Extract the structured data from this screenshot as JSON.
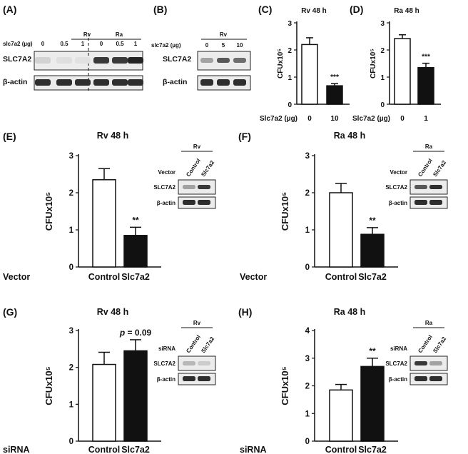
{
  "panels": {
    "A": {
      "label": "(A)",
      "groups": [
        "Rv",
        "Ra"
      ],
      "dose_label": "slc7a2 (µg)",
      "doses": [
        "0",
        "0.5",
        "1",
        "0",
        "0.5",
        "1"
      ],
      "rows": [
        "SLC7A2",
        "β-actin"
      ],
      "slc_intensity": [
        0.12,
        0.06,
        0.05,
        0.85,
        0.85,
        0.95
      ]
    },
    "B": {
      "label": "(B)",
      "group": "Rv",
      "dose_label": "slc7a2 (µg)",
      "doses": [
        "0",
        "5",
        "10"
      ],
      "rows": [
        "SLC7A2",
        "β-actin"
      ],
      "slc_intensity": [
        0.35,
        0.7,
        0.6
      ]
    },
    "E_blot": {
      "group": "Rv",
      "row_label": "Vector",
      "cols": [
        "Control",
        "Slc7a2"
      ],
      "rows": [
        "SLC7A2",
        "β-actin"
      ],
      "slc_intensity": [
        0.35,
        0.85
      ]
    },
    "F_blot": {
      "group": "Ra",
      "row_label": "Vector",
      "cols": [
        "Control",
        "Slc7a2"
      ],
      "rows": [
        "SLC7A2",
        "β-actin"
      ],
      "slc_intensity": [
        0.7,
        0.9
      ]
    },
    "G_blot": {
      "group": "Rv",
      "row_label": "siRNA",
      "cols": [
        "Control",
        "Slc7a2"
      ],
      "rows": [
        "SLC7A2",
        "β-actin"
      ],
      "slc_intensity": [
        0.25,
        0.15
      ]
    },
    "H_blot": {
      "group": "Ra",
      "row_label": "siRNA",
      "cols": [
        "Control",
        "Slc7a2"
      ],
      "rows": [
        "SLC7A2",
        "β-actin"
      ],
      "slc_intensity": [
        0.85,
        0.35
      ]
    }
  },
  "chart_data": [
    {
      "panel": "(C)",
      "type": "bar",
      "title": "Rv 48 h",
      "ylabel": "CFUx10⁵",
      "xlabel": "Slc7a2 (µg)",
      "categories": [
        "0",
        "10"
      ],
      "values": [
        2.2,
        0.68
      ],
      "errors": [
        0.25,
        0.08
      ],
      "fills": [
        "#ffffff",
        "#111111"
      ],
      "ylim": [
        0,
        3
      ],
      "yticks": [
        0,
        1,
        2,
        3
      ],
      "annotations": [
        "",
        "***"
      ]
    },
    {
      "panel": "(D)",
      "type": "bar",
      "title": "Ra 48 h",
      "ylabel": "CFUx10⁵",
      "xlabel": "Slc7a2 (µg)",
      "categories": [
        "0",
        "1"
      ],
      "values": [
        2.42,
        1.35
      ],
      "errors": [
        0.14,
        0.16
      ],
      "fills": [
        "#ffffff",
        "#111111"
      ],
      "ylim": [
        0,
        3
      ],
      "yticks": [
        0,
        1,
        2,
        3
      ],
      "annotations": [
        "",
        "***"
      ]
    },
    {
      "panel": "(E)",
      "type": "bar",
      "title": "Rv 48 h",
      "ylabel": "CFUx10⁵",
      "xlabel": "Vector",
      "categories": [
        "Control",
        "Slc7a2"
      ],
      "values": [
        2.35,
        0.85
      ],
      "errors": [
        0.3,
        0.22
      ],
      "fills": [
        "#ffffff",
        "#111111"
      ],
      "ylim": [
        0,
        3
      ],
      "yticks": [
        0,
        1,
        2,
        3
      ],
      "annotations": [
        "",
        "**"
      ]
    },
    {
      "panel": "(F)",
      "type": "bar",
      "title": "Ra 48 h",
      "ylabel": "CFUx10⁵",
      "xlabel": "Vector",
      "categories": [
        "Control",
        "Slc7a2"
      ],
      "values": [
        2.0,
        0.88
      ],
      "errors": [
        0.25,
        0.18
      ],
      "fills": [
        "#ffffff",
        "#111111"
      ],
      "ylim": [
        0,
        3
      ],
      "yticks": [
        0,
        1,
        2,
        3
      ],
      "annotations": [
        "",
        "**"
      ]
    },
    {
      "panel": "(G)",
      "type": "bar",
      "title": "Rv 48 h",
      "ylabel": "CFUx10⁵",
      "xlabel": "siRNA",
      "categories": [
        "Control",
        "Slc7a2"
      ],
      "values": [
        2.08,
        2.45
      ],
      "errors": [
        0.33,
        0.3
      ],
      "fills": [
        "#ffffff",
        "#111111"
      ],
      "ylim": [
        0,
        3
      ],
      "yticks": [
        0,
        1,
        2,
        3
      ],
      "annotations": [
        "",
        "p = 0.09"
      ]
    },
    {
      "panel": "(H)",
      "type": "bar",
      "title": "Ra 48 h",
      "ylabel": "CFUx10⁵",
      "xlabel": "siRNA",
      "categories": [
        "Control",
        "Slc7a2"
      ],
      "values": [
        1.85,
        2.7
      ],
      "errors": [
        0.2,
        0.3
      ],
      "fills": [
        "#ffffff",
        "#111111"
      ],
      "ylim": [
        0,
        4
      ],
      "yticks": [
        0,
        1,
        2,
        3,
        4
      ],
      "annotations": [
        "",
        "**"
      ]
    }
  ]
}
